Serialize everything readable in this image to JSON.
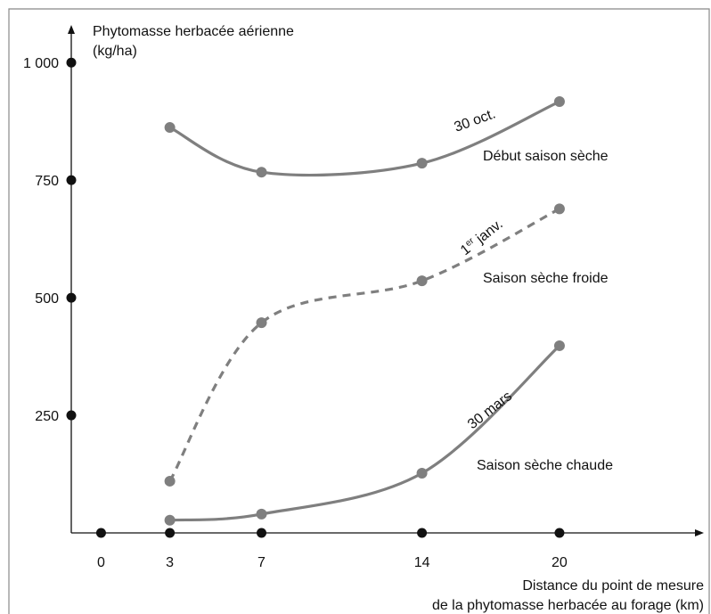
{
  "chart_data": {
    "type": "line",
    "y_label": [
      "Phytomasse herbacée aérienne",
      "(kg/ha)"
    ],
    "x_label": [
      "Distance du point de mesure",
      "de la phytomasse herbacée au forage (km)"
    ],
    "x": [
      3,
      7,
      14,
      20
    ],
    "xlim": [
      -1.3,
      26.3
    ],
    "ylim": [
      0,
      1080
    ],
    "xticks": [
      0,
      3,
      7,
      14,
      20
    ],
    "yticks": [
      250,
      500,
      {
        "value": 1000,
        "label": "1 000"
      },
      750
    ],
    "series": [
      {
        "name": "30 oct.",
        "caption": "Début saison sèche",
        "color": "#7f7f7f",
        "dashed": false,
        "values": [
          862,
          767,
          786,
          917
        ]
      },
      {
        "name": [
          "1",
          "er",
          " janv."
        ],
        "caption": "Saison sèche froide",
        "color": "#7f7f7f",
        "dashed": true,
        "values": [
          110,
          447,
          536,
          689
        ]
      },
      {
        "name": "30 mars",
        "caption": "Saison sèche chaude",
        "color": "#7f7f7f",
        "dashed": false,
        "values": [
          27,
          40,
          127,
          398
        ]
      }
    ]
  }
}
